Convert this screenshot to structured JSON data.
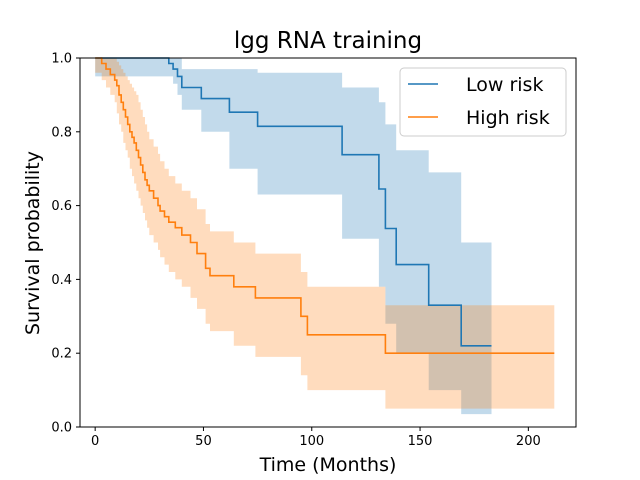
{
  "chart_data": {
    "type": "line",
    "title": "lgg RNA training",
    "xlabel": "Time (Months)",
    "ylabel": "Survival probability",
    "xlim": [
      -7,
      222
    ],
    "ylim": [
      0,
      1
    ],
    "xticks": [
      0,
      50,
      100,
      150,
      200
    ],
    "yticks": [
      0.0,
      0.2,
      0.4,
      0.6,
      0.8,
      1.0
    ],
    "legend_position": "upper-right",
    "series": [
      {
        "name": "Low risk",
        "color": "#1f77b4",
        "step_x": [
          0,
          34,
          36,
          38,
          40,
          49,
          62,
          75,
          114,
          131,
          134,
          139,
          154,
          169,
          183
        ],
        "step_y": [
          1.0,
          0.985,
          0.97,
          0.95,
          0.92,
          0.89,
          0.853,
          0.815,
          0.738,
          0.645,
          0.538,
          0.44,
          0.33,
          0.22,
          0.22
        ],
        "ci_lower": [
          0.95,
          0.95,
          0.93,
          0.9,
          0.86,
          0.8,
          0.7,
          0.63,
          0.51,
          0.38,
          0.28,
          0.2,
          0.1,
          0.035,
          0.035
        ],
        "ci_upper": [
          1.0,
          1.0,
          1.0,
          1.0,
          0.97,
          0.97,
          0.97,
          0.96,
          0.92,
          0.88,
          0.82,
          0.75,
          0.69,
          0.5,
          0.5
        ]
      },
      {
        "name": "High risk",
        "color": "#ff7f0e",
        "step_x": [
          0,
          3,
          5,
          7,
          9,
          10,
          11,
          12,
          13,
          14,
          15,
          16,
          17,
          18,
          19,
          20,
          21,
          22,
          23,
          24,
          25,
          27,
          29,
          30,
          32,
          34,
          37,
          40,
          44,
          47,
          51,
          53,
          64,
          74,
          95,
          98,
          134,
          212
        ],
        "step_y": [
          1.0,
          0.985,
          0.97,
          0.955,
          0.94,
          0.925,
          0.9,
          0.88,
          0.86,
          0.84,
          0.82,
          0.8,
          0.785,
          0.77,
          0.75,
          0.73,
          0.71,
          0.69,
          0.67,
          0.655,
          0.64,
          0.62,
          0.6,
          0.585,
          0.57,
          0.555,
          0.54,
          0.52,
          0.5,
          0.47,
          0.43,
          0.41,
          0.38,
          0.35,
          0.3,
          0.25,
          0.2,
          0.2
        ],
        "ci_lower": [
          0.96,
          0.94,
          0.92,
          0.9,
          0.88,
          0.85,
          0.82,
          0.8,
          0.77,
          0.75,
          0.73,
          0.7,
          0.68,
          0.66,
          0.64,
          0.62,
          0.6,
          0.58,
          0.56,
          0.54,
          0.52,
          0.5,
          0.48,
          0.46,
          0.44,
          0.42,
          0.4,
          0.38,
          0.35,
          0.32,
          0.28,
          0.26,
          0.22,
          0.19,
          0.14,
          0.1,
          0.05,
          0.05
        ],
        "ci_upper": [
          1.0,
          1.0,
          1.0,
          1.0,
          1.0,
          0.99,
          0.98,
          0.97,
          0.96,
          0.95,
          0.94,
          0.93,
          0.92,
          0.91,
          0.9,
          0.88,
          0.86,
          0.84,
          0.82,
          0.8,
          0.78,
          0.76,
          0.74,
          0.72,
          0.7,
          0.68,
          0.66,
          0.64,
          0.62,
          0.59,
          0.55,
          0.53,
          0.5,
          0.47,
          0.42,
          0.38,
          0.33,
          0.33
        ]
      }
    ]
  }
}
